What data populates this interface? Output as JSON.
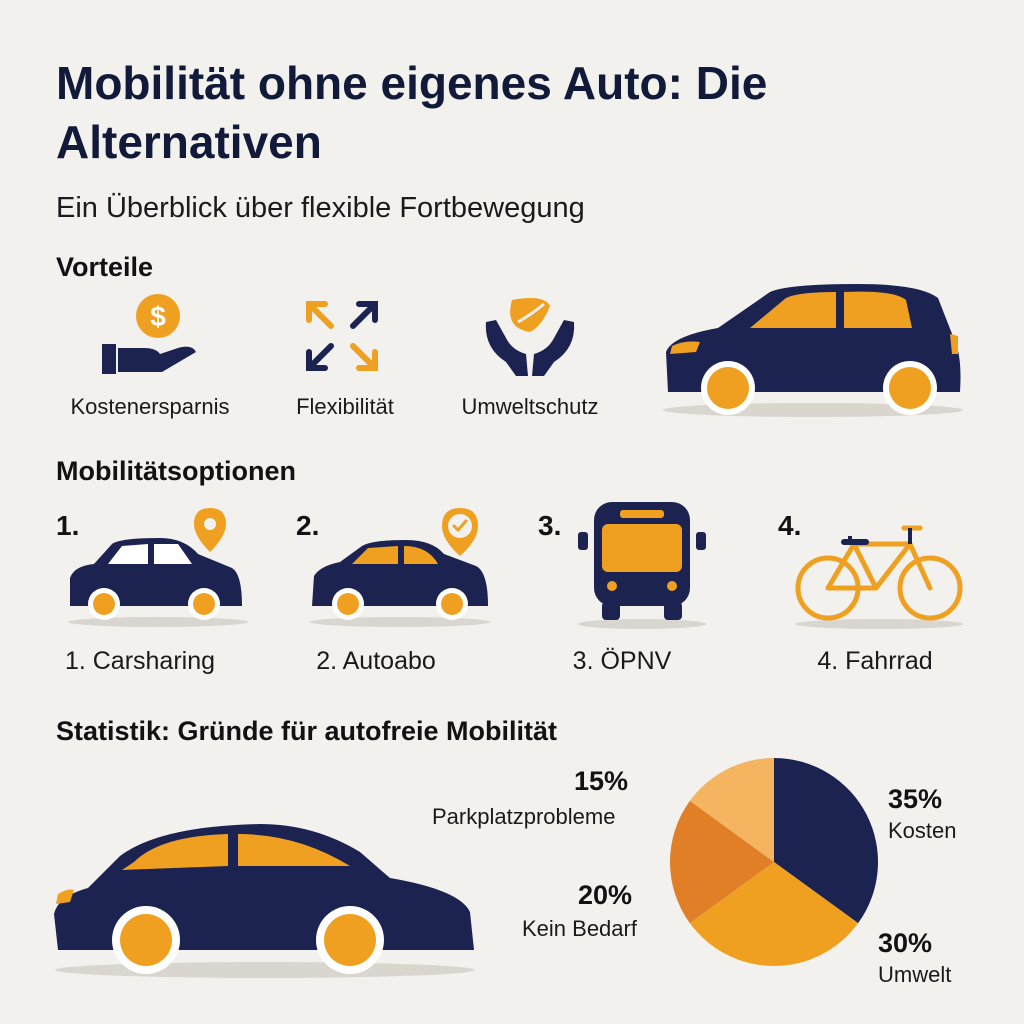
{
  "title": "Mobilität ohne eigenes Auto: Die Alternativen",
  "subtitle": "Ein Überblick über flexible Fortbewegung",
  "colors": {
    "navy": "#1c2350",
    "orange": "#f0a020",
    "light_orange": "#f5b560",
    "dark_orange": "#e07f25"
  },
  "advantages": {
    "heading": "Vorteile",
    "items": [
      {
        "label": "Kostenersparnis",
        "icon": "money-hand-icon"
      },
      {
        "label": "Flexibilität",
        "icon": "arrows-expand-icon"
      },
      {
        "label": "Umweltschutz",
        "icon": "leaf-hands-icon"
      }
    ]
  },
  "options": {
    "heading": "Mobilitätsoptionen",
    "items": [
      {
        "number": "1.",
        "label": "1. Carsharing",
        "icon": "location-pin-icon"
      },
      {
        "number": "2.",
        "label": "2. Autoabo",
        "icon": "check-pin-icon"
      },
      {
        "number": "3.",
        "label": "3. ÖPNV",
        "icon": "bus-icon"
      },
      {
        "number": "4.",
        "label": "4. Fahrrad",
        "icon": "bicycle-icon"
      }
    ]
  },
  "statistics": {
    "heading": "Statistik: Gründe für autofreie Mobilität"
  },
  "chart_data": {
    "type": "pie",
    "title": "",
    "slices": [
      {
        "label": "Kosten",
        "value": 35,
        "display": "35%",
        "color": "#1c2350"
      },
      {
        "label": "Umwelt",
        "value": 30,
        "display": "30%",
        "color": "#f0a020"
      },
      {
        "label": "Kein Bedarf",
        "value": 20,
        "display": "20%",
        "color": "#e07f25"
      },
      {
        "label": "Parkplatzprobleme",
        "value": 15,
        "display": "15%",
        "color": "#f5b560"
      }
    ]
  }
}
